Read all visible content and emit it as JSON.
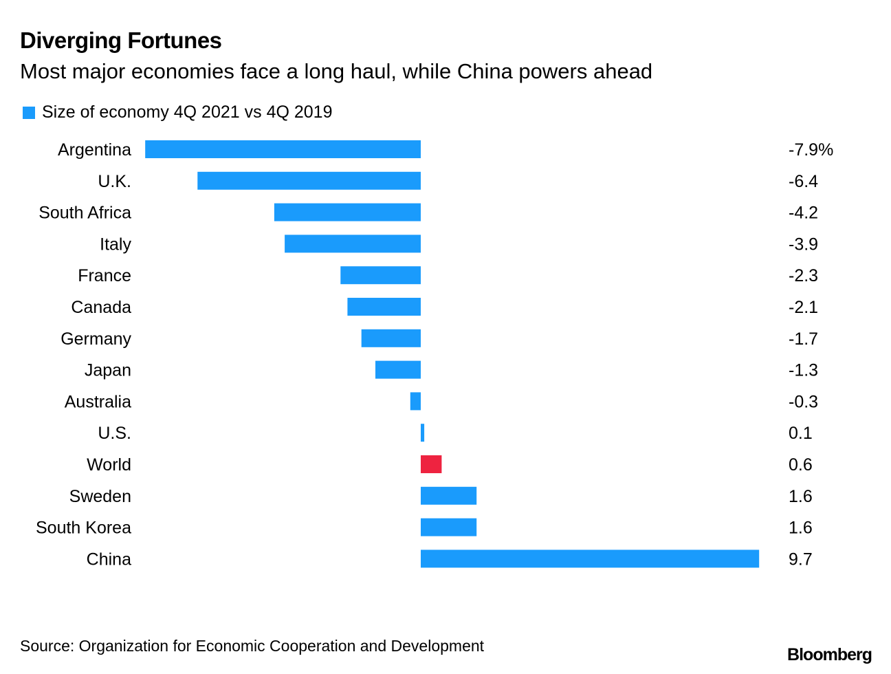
{
  "header": {
    "title": "Diverging Fortunes",
    "subtitle": "Most major economies face a long haul, while China powers ahead"
  },
  "footer": {
    "source": "Source: Organization for Economic Cooperation and Development",
    "logo": "Bloomberg"
  },
  "colors": {
    "primary": "#1a9bfc",
    "highlight": "#ee2340"
  },
  "chart_data": {
    "type": "bar",
    "orientation": "horizontal",
    "title": "Diverging Fortunes",
    "subtitle": "Most major economies face a long haul, while China powers ahead",
    "legend": [
      {
        "label": "Size of economy 4Q 2021 vs 4Q 2019",
        "color": "#1a9bfc"
      }
    ],
    "legend_position": "top-left",
    "xlabel": "",
    "ylabel": "",
    "unit": "%",
    "xlim": [
      -7.9,
      9.7
    ],
    "grid": false,
    "categories": [
      "Argentina",
      "U.K.",
      "South Africa",
      "Italy",
      "France",
      "Canada",
      "Germany",
      "Japan",
      "Australia",
      "U.S.",
      "World",
      "Sweden",
      "South Korea",
      "China"
    ],
    "values": [
      -7.9,
      -6.4,
      -4.2,
      -3.9,
      -2.3,
      -2.1,
      -1.7,
      -1.3,
      -0.3,
      0.1,
      0.6,
      1.6,
      1.6,
      9.7
    ],
    "value_labels": [
      "-7.9%",
      "-6.4",
      "-4.2",
      "-3.9",
      "-2.3",
      "-2.1",
      "-1.7",
      "-1.3",
      "-0.3",
      "0.1",
      "0.6",
      "1.6",
      "1.6",
      "9.7"
    ],
    "highlighted": [
      "World"
    ],
    "source": "Organization for Economic Cooperation and Development"
  }
}
